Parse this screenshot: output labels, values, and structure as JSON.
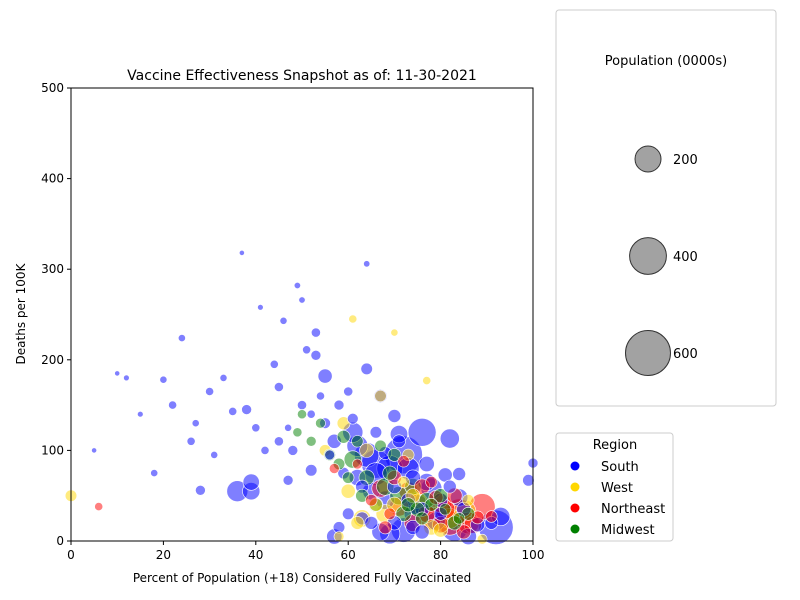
{
  "chart_data": {
    "type": "scatter",
    "title": "Vaccine Effectiveness Snapshot as of: 11-30-2021",
    "xlabel": "Percent of Population (+18) Considered Fully Vaccinated",
    "ylabel": "Deaths per 100K",
    "xlim": [
      0,
      100
    ],
    "ylim": [
      0,
      500
    ],
    "xticks": [
      0,
      20,
      40,
      60,
      80,
      100
    ],
    "yticks": [
      0,
      100,
      200,
      300,
      400,
      500
    ],
    "grid": false,
    "size_legend": {
      "title": "Population (0000s)",
      "entries": [
        {
          "label": "200",
          "value": 200
        },
        {
          "label": "400",
          "value": 400
        },
        {
          "label": "600",
          "value": 600
        }
      ]
    },
    "color_legend": {
      "title": "Region",
      "placement": "right",
      "entries": [
        {
          "label": "South",
          "color": "#0000ff"
        },
        {
          "label": "West",
          "color": "#ffd700"
        },
        {
          "label": "Northeast",
          "color": "#ff0000"
        },
        {
          "label": "Midwest",
          "color": "#008000"
        }
      ]
    },
    "series": [
      {
        "name": "South",
        "color": "#0000ff",
        "points": [
          [
            72,
            95,
            420
          ],
          [
            76,
            120,
            230
          ],
          [
            92,
            15,
            350
          ],
          [
            66,
            85,
            240
          ],
          [
            69,
            80,
            200
          ],
          [
            64,
            95,
            180
          ],
          [
            61,
            120,
            120
          ],
          [
            62,
            105,
            130
          ],
          [
            82,
            113,
            110
          ],
          [
            71,
            118,
            90
          ],
          [
            36,
            55,
            130
          ],
          [
            39,
            55,
            90
          ],
          [
            39,
            65,
            80
          ],
          [
            84,
            48,
            90
          ],
          [
            93,
            27,
            100
          ],
          [
            83,
            14,
            200
          ],
          [
            72,
            12,
            180
          ],
          [
            69,
            8,
            120
          ],
          [
            67,
            10,
            90
          ],
          [
            57,
            5,
            70
          ],
          [
            66,
            74,
            150
          ],
          [
            73,
            80,
            140
          ],
          [
            78,
            58,
            130
          ],
          [
            64,
            190,
            40
          ],
          [
            67,
            160,
            50
          ],
          [
            70,
            138,
            50
          ],
          [
            55,
            182,
            60
          ],
          [
            53,
            205,
            30
          ],
          [
            53,
            230,
            25
          ],
          [
            51,
            211,
            20
          ],
          [
            45,
            170,
            25
          ],
          [
            44,
            195,
            20
          ],
          [
            38,
            145,
            30
          ],
          [
            30,
            165,
            20
          ],
          [
            27,
            130,
            15
          ],
          [
            20,
            178,
            15
          ],
          [
            22,
            150,
            20
          ],
          [
            26,
            110,
            20
          ],
          [
            31,
            95,
            15
          ],
          [
            40,
            125,
            20
          ],
          [
            47,
            67,
            30
          ],
          [
            48,
            100,
            30
          ],
          [
            52,
            78,
            40
          ],
          [
            55,
            130,
            35
          ],
          [
            58,
            150,
            30
          ],
          [
            60,
            165,
            25
          ],
          [
            57,
            110,
            60
          ],
          [
            62,
            70,
            80
          ],
          [
            65,
            55,
            90
          ],
          [
            68,
            45,
            100
          ],
          [
            75,
            40,
            120
          ],
          [
            79,
            22,
            100
          ],
          [
            74,
            30,
            90
          ],
          [
            86,
            5,
            80
          ],
          [
            77,
            65,
            90
          ],
          [
            81,
            73,
            60
          ],
          [
            84,
            74,
            50
          ],
          [
            88,
            18,
            60
          ],
          [
            91,
            20,
            50
          ],
          [
            100,
            86,
            30
          ],
          [
            99,
            67,
            40
          ],
          [
            28,
            56,
            30
          ],
          [
            35,
            143,
            20
          ],
          [
            42,
            100,
            20
          ],
          [
            45,
            110,
            25
          ],
          [
            50,
            150,
            25
          ],
          [
            56,
            95,
            30
          ],
          [
            59,
            75,
            40
          ],
          [
            63,
            60,
            50
          ],
          [
            70,
            60,
            60
          ],
          [
            73,
            45,
            60
          ],
          [
            76,
            35,
            60
          ],
          [
            80,
            30,
            50
          ],
          [
            60,
            30,
            40
          ],
          [
            58,
            15,
            40
          ],
          [
            12,
            180,
            10
          ],
          [
            15,
            140,
            10
          ],
          [
            18,
            75,
            15
          ],
          [
            24,
            224,
            15
          ],
          [
            33,
            180,
            15
          ],
          [
            46,
            243,
            15
          ],
          [
            49,
            282,
            12
          ],
          [
            50,
            266,
            12
          ],
          [
            64,
            306,
            12
          ],
          [
            41,
            258,
            10
          ],
          [
            37,
            318,
            8
          ],
          [
            10,
            185,
            8
          ],
          [
            5,
            100,
            8
          ],
          [
            47,
            125,
            15
          ],
          [
            52,
            140,
            20
          ],
          [
            54,
            160,
            20
          ],
          [
            61,
            135,
            35
          ],
          [
            66,
            120,
            40
          ],
          [
            68,
            97,
            50
          ],
          [
            71,
            110,
            50
          ],
          [
            74,
            70,
            70
          ],
          [
            77,
            85,
            70
          ],
          [
            80,
            45,
            60
          ],
          [
            82,
            60,
            50
          ],
          [
            85,
            35,
            60
          ],
          [
            63,
            25,
            50
          ],
          [
            65,
            20,
            50
          ],
          [
            70,
            20,
            60
          ],
          [
            74,
            15,
            60
          ],
          [
            76,
            10,
            60
          ]
        ]
      },
      {
        "name": "West",
        "color": "#ffd700",
        "points": [
          [
            85,
            32,
            180
          ],
          [
            82,
            25,
            120
          ],
          [
            68,
            30,
            100
          ],
          [
            63,
            25,
            90
          ],
          [
            64,
            100,
            60
          ],
          [
            67,
            160,
            40
          ],
          [
            59,
            130,
            50
          ],
          [
            55,
            100,
            40
          ],
          [
            60,
            55,
            60
          ],
          [
            70,
            40,
            70
          ],
          [
            75,
            45,
            80
          ],
          [
            78,
            15,
            70
          ],
          [
            80,
            12,
            60
          ],
          [
            74,
            50,
            60
          ],
          [
            0,
            50,
            40
          ],
          [
            77,
            177,
            20
          ],
          [
            72,
            65,
            40
          ],
          [
            66,
            40,
            50
          ],
          [
            62,
            20,
            50
          ],
          [
            89,
            2,
            30
          ],
          [
            61,
            245,
            20
          ],
          [
            70,
            230,
            15
          ],
          [
            58,
            5,
            30
          ],
          [
            86,
            45,
            40
          ],
          [
            73,
            95,
            40
          ]
        ]
      },
      {
        "name": "Northeast",
        "color": "#ff0000",
        "points": [
          [
            89,
            38,
            200
          ],
          [
            84,
            33,
            180
          ],
          [
            80,
            40,
            150
          ],
          [
            82,
            20,
            180
          ],
          [
            86,
            20,
            140
          ],
          [
            78,
            25,
            150
          ],
          [
            75,
            42,
            130
          ],
          [
            71,
            38,
            110
          ],
          [
            73,
            55,
            100
          ],
          [
            77,
            30,
            90
          ],
          [
            80,
            18,
            80
          ],
          [
            83,
            50,
            70
          ],
          [
            76,
            60,
            70
          ],
          [
            67,
            58,
            90
          ],
          [
            70,
            70,
            60
          ],
          [
            87,
            18,
            90
          ],
          [
            81,
            35,
            110
          ],
          [
            74,
            20,
            90
          ],
          [
            85,
            10,
            60
          ],
          [
            79,
            48,
            60
          ],
          [
            65,
            45,
            40
          ],
          [
            69,
            30,
            40
          ],
          [
            6,
            38,
            20
          ],
          [
            57,
            80,
            30
          ],
          [
            62,
            85,
            30
          ],
          [
            72,
            88,
            40
          ],
          [
            88,
            26,
            50
          ],
          [
            91,
            27,
            40
          ],
          [
            78,
            65,
            40
          ],
          [
            68,
            15,
            50
          ]
        ]
      },
      {
        "name": "Midwest",
        "color": "#008000",
        "points": [
          [
            61,
            90,
            90
          ],
          [
            64,
            70,
            70
          ],
          [
            68,
            60,
            90
          ],
          [
            71,
            50,
            100
          ],
          [
            74,
            60,
            80
          ],
          [
            77,
            45,
            70
          ],
          [
            80,
            50,
            60
          ],
          [
            72,
            30,
            70
          ],
          [
            66,
            40,
            60
          ],
          [
            59,
            115,
            50
          ],
          [
            56,
            95,
            40
          ],
          [
            54,
            130,
            30
          ],
          [
            52,
            110,
            30
          ],
          [
            50,
            140,
            25
          ],
          [
            49,
            120,
            25
          ],
          [
            62,
            110,
            40
          ],
          [
            69,
            75,
            60
          ],
          [
            75,
            35,
            60
          ],
          [
            78,
            40,
            50
          ],
          [
            70,
            95,
            50
          ],
          [
            83,
            20,
            60
          ],
          [
            86,
            30,
            50
          ],
          [
            76,
            25,
            50
          ],
          [
            63,
            50,
            50
          ],
          [
            58,
            85,
            40
          ],
          [
            60,
            70,
            40
          ],
          [
            67,
            105,
            40
          ],
          [
            73,
            40,
            60
          ],
          [
            81,
            35,
            40
          ],
          [
            84,
            25,
            40
          ]
        ]
      }
    ]
  }
}
